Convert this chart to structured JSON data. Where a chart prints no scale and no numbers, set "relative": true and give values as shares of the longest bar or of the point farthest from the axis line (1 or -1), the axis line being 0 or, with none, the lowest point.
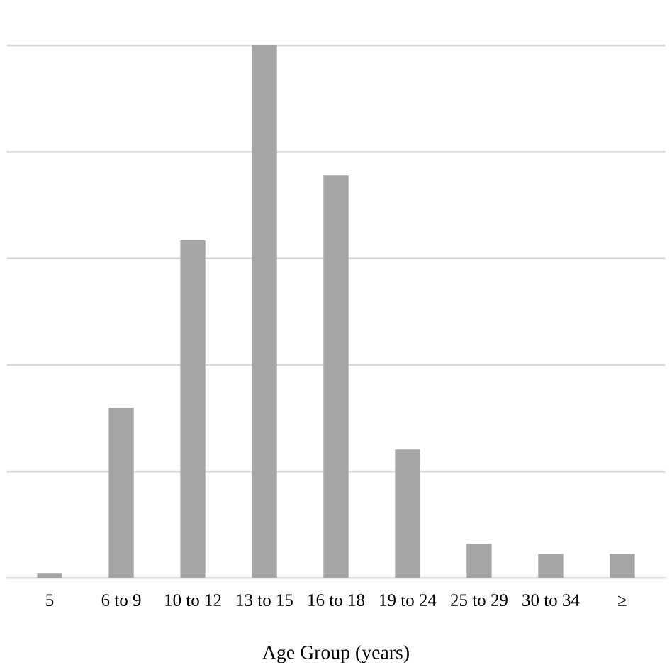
{
  "chart_data": {
    "type": "bar",
    "relative": true,
    "xlabel": "Age Group (years)",
    "categories": [
      "5",
      "6 to 9",
      "10 to 12",
      "13 to 15",
      "16 to 18",
      "19 to 24",
      "25 to 29",
      "30 to 34",
      "≥"
    ],
    "values": [
      0.008,
      0.32,
      0.634,
      1,
      0.756,
      0.241,
      0.064,
      0.045,
      0.045
    ],
    "color": "#a5a5a5",
    "grid": "y"
  }
}
